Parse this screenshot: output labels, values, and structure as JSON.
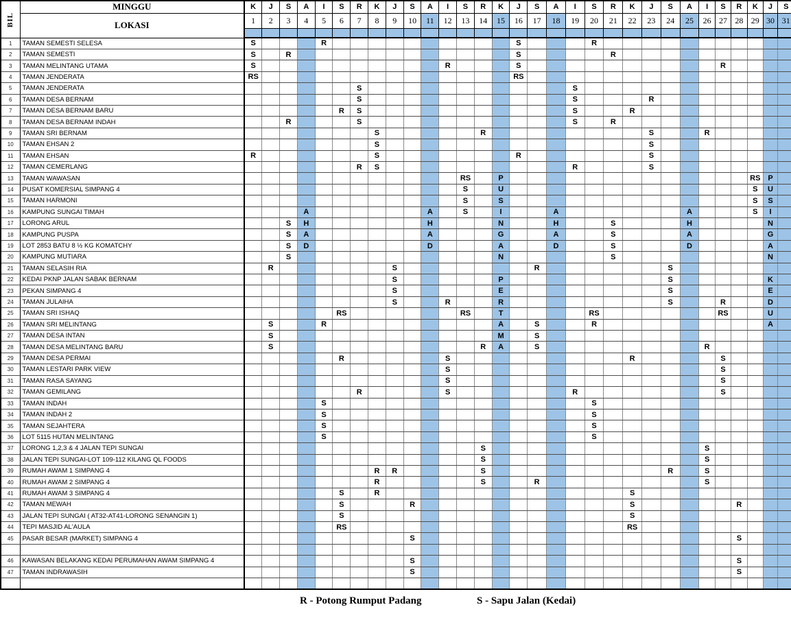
{
  "header": {
    "bil_label": "BIL",
    "minggu_label": "MINGGU",
    "lokasi_label": "LOKASI",
    "day_letters": [
      "K",
      "J",
      "S",
      "A",
      "I",
      "S",
      "R",
      "K",
      "J",
      "S",
      "A",
      "I",
      "S",
      "R",
      "K",
      "J",
      "S",
      "A",
      "I",
      "S",
      "R",
      "K",
      "J",
      "S",
      "A",
      "I",
      "S",
      "R",
      "K",
      "J",
      "S"
    ],
    "day_numbers": [
      "1",
      "2",
      "3",
      "4",
      "5",
      "6",
      "7",
      "8",
      "9",
      "10",
      "11",
      "12",
      "13",
      "14",
      "15",
      "16",
      "17",
      "18",
      "19",
      "20",
      "21",
      "22",
      "23",
      "24",
      "25",
      "26",
      "27",
      "28",
      "29",
      "30",
      "31"
    ],
    "highlighted_numbers": [
      11,
      15,
      18,
      25,
      30,
      31
    ]
  },
  "grid": {
    "blue_columns": [
      4,
      11,
      15,
      18,
      25,
      30,
      31
    ],
    "rows": [
      {
        "bil": "1",
        "name": "TAMAN SEMESTI SELESA",
        "cells": {
          "1": "S",
          "5": "R",
          "16": "S",
          "20": "R"
        }
      },
      {
        "bil": "2",
        "name": "TAMAN SEMESTI",
        "cells": {
          "1": "S",
          "3": "R",
          "16": "S",
          "21": "R"
        }
      },
      {
        "bil": "3",
        "name": "TAMAN MELINTANG UTAMA",
        "cells": {
          "1": "S",
          "12": "R",
          "16": "S",
          "27": "R"
        }
      },
      {
        "bil": "4",
        "name": "TAMAN JENDERATA",
        "cells": {
          "1": "RS",
          "16": "RS"
        }
      },
      {
        "bil": "5",
        "name": "TAMAN JENDERATA",
        "cells": {
          "7": "S",
          "19": "S"
        }
      },
      {
        "bil": "6",
        "name": "TAMAN DESA BERNAM",
        "cells": {
          "7": "S",
          "19": "S",
          "23": "R"
        }
      },
      {
        "bil": "7",
        "name": "TAMAN DESA BERNAM BARU",
        "cells": {
          "6": "R",
          "7": "S",
          "19": "S",
          "22": "R"
        }
      },
      {
        "bil": "8",
        "name": "TAMAN DESA BERNAM INDAH",
        "cells": {
          "3": "R",
          "7": "S",
          "19": "S",
          "21": "R"
        }
      },
      {
        "bil": "9",
        "name": "TAMAN SRI BERNAM",
        "cells": {
          "8": "S",
          "14": "R",
          "23": "S",
          "26": "R"
        }
      },
      {
        "bil": "10",
        "name": "TAMAN EHSAN 2",
        "cells": {
          "8": "S",
          "23": "S"
        }
      },
      {
        "bil": "11",
        "name": "TAMAN EHSAN",
        "cells": {
          "1": "R",
          "8": "S",
          "16": "R",
          "23": "S"
        }
      },
      {
        "bil": "12",
        "name": "TAMAN CEMERLANG",
        "cells": {
          "7": "R",
          "8": "S",
          "19": "R",
          "23": "S"
        }
      },
      {
        "bil": "13",
        "name": "TAMAN WAWASAN",
        "cells": {
          "13": "RS",
          "15": "P",
          "29": "RS",
          "30": "P"
        }
      },
      {
        "bil": "14",
        "name": "PUSAT KOMERSIAL SIMPANG 4",
        "cells": {
          "13": "S",
          "15": "U",
          "29": "S",
          "30": "U"
        }
      },
      {
        "bil": "15",
        "name": "TAMAN HARMONI",
        "cells": {
          "13": "S",
          "15": "S",
          "29": "S",
          "30": "S"
        }
      },
      {
        "bil": "16",
        "name": "KAMPUNG SUNGAI TIMAH",
        "cells": {
          "4": "A",
          "11": "A",
          "13": "S",
          "15": "I",
          "18": "A",
          "25": "A",
          "29": "S",
          "30": "I"
        }
      },
      {
        "bil": "17",
        "name": "LORONG ARUL",
        "cells": {
          "3": "S",
          "4": "H",
          "11": "H",
          "15": "N",
          "18": "H",
          "21": "S",
          "25": "H",
          "30": "N"
        }
      },
      {
        "bil": "18",
        "name": "KAMPUNG PUSPA",
        "cells": {
          "3": "S",
          "4": "A",
          "11": "A",
          "15": "G",
          "18": "A",
          "21": "S",
          "25": "A",
          "30": "G"
        }
      },
      {
        "bil": "19",
        "name": "LOT 2853 BATU 8 ½ KG KOMATCHY",
        "cells": {
          "3": "S",
          "4": "D",
          "11": "D",
          "15": "A",
          "18": "D",
          "21": "S",
          "25": "D",
          "30": "A"
        }
      },
      {
        "bil": "20",
        "name": "KAMPUNG MUTIARA",
        "cells": {
          "3": "S",
          "15": "N",
          "21": "S",
          "30": "N"
        }
      },
      {
        "bil": "21",
        "name": "TAMAN SELASIH RIA",
        "cells": {
          "2": "R",
          "9": "S",
          "17": "R",
          "24": "S"
        }
      },
      {
        "bil": "22",
        "name": "KEDAI PKNP JALAN SABAK BERNAM",
        "cells": {
          "9": "S",
          "15": "P",
          "24": "S",
          "30": "K"
        }
      },
      {
        "bil": "23",
        "name": "PEKAN SIMPANG 4",
        "cells": {
          "9": "S",
          "15": "E",
          "24": "S",
          "30": "E"
        }
      },
      {
        "bil": "24",
        "name": "TAMAN JULAIHA",
        "cells": {
          "9": "S",
          "12": "R",
          "15": "R",
          "24": "S",
          "27": "R",
          "30": "D"
        }
      },
      {
        "bil": "25",
        "name": "TAMAN SRI ISHAQ",
        "cells": {
          "6": "RS",
          "13": "RS",
          "15": "T",
          "20": "RS",
          "27": "RS",
          "30": "U"
        }
      },
      {
        "bil": "26",
        "name": "TAMAN SRI MELINTANG",
        "cells": {
          "2": "S",
          "5": "R",
          "15": "A",
          "17": "S",
          "20": "R",
          "30": "A"
        }
      },
      {
        "bil": "27",
        "name": "TAMAN DESA INTAN",
        "cells": {
          "2": "S",
          "15": "M",
          "17": "S"
        }
      },
      {
        "bil": "28",
        "name": "TAMAN DESA MELINTANG BARU",
        "cells": {
          "2": "S",
          "14": "R",
          "15": "A",
          "17": "S",
          "26": "R"
        }
      },
      {
        "bil": "29",
        "name": "TAMAN DESA PERMAI",
        "cells": {
          "6": "R",
          "12": "S",
          "22": "R",
          "27": "S"
        }
      },
      {
        "bil": "30",
        "name": "TAMAN LESTARI PARK VIEW",
        "cells": {
          "12": "S",
          "27": "S"
        }
      },
      {
        "bil": "31",
        "name": "TAMAN RASA SAYANG",
        "cells": {
          "12": "S",
          "27": "S"
        }
      },
      {
        "bil": "32",
        "name": "TAMAN GEMILANG",
        "cells": {
          "7": "R",
          "12": "S",
          "19": "R",
          "27": "S"
        }
      },
      {
        "bil": "33",
        "name": "TAMAN INDAH",
        "cells": {
          "5": "S",
          "20": "S"
        }
      },
      {
        "bil": "34",
        "name": "TAMAN INDAH 2",
        "cells": {
          "5": "S",
          "20": "S"
        }
      },
      {
        "bil": "35",
        "name": "TAMAN SEJAHTERA",
        "cells": {
          "5": "S",
          "20": "S"
        }
      },
      {
        "bil": "36",
        "name": "LOT 5115 HUTAN MELINTANG",
        "cells": {
          "5": "S",
          "20": "S"
        }
      },
      {
        "bil": "37",
        "name": "LORONG 1,2,3 & 4 JALAN TEPI SUNGAI",
        "cells": {
          "14": "S",
          "26": "S"
        }
      },
      {
        "bil": "38",
        "name": "JALAN TEPI SUNGAI-LOT 109-112 KILANG QL FOODS",
        "cells": {
          "14": "S",
          "26": "S"
        }
      },
      {
        "bil": "39",
        "name": "RUMAH AWAM 1 SIMPANG 4",
        "cells": {
          "8": "R",
          "9": "R",
          "14": "S",
          "24": "R",
          "26": "S"
        }
      },
      {
        "bil": "40",
        "name": "RUMAH AWAM 2 SIMPANG 4",
        "cells": {
          "8": "R",
          "14": "S",
          "17": "R",
          "26": "S"
        }
      },
      {
        "bil": "41",
        "name": "RUMAH AWAM 3 SIMPANG 4",
        "cells": {
          "6": "S",
          "8": "R",
          "22": "S"
        }
      },
      {
        "bil": "42",
        "name": "TAMAN MEWAH",
        "cells": {
          "6": "S",
          "10": "R",
          "22": "S",
          "28": "R"
        }
      },
      {
        "bil": "43",
        "name": "JALAN TEPI SUNGAI ( AT32-AT41-LORONG SENANGIN 1)",
        "cells": {
          "6": "S",
          "22": "S"
        }
      },
      {
        "bil": "44",
        "name": "TEPI MASJID AL'AULA",
        "cells": {
          "6": "RS",
          "22": "RS"
        }
      },
      {
        "bil": "45",
        "name": "PASAR BESAR (MARKET) SIMPANG 4",
        "cells": {
          "10": "S",
          "28": "S"
        }
      },
      {
        "bil": "",
        "name": "",
        "cells": {}
      },
      {
        "bil": "46",
        "name": "KAWASAN BELAKANG KEDAI PERUMAHAN AWAM SIMPANG 4",
        "cells": {
          "10": "S",
          "28": "S"
        }
      },
      {
        "bil": "47",
        "name": "TAMAN INDRAWASIH",
        "cells": {
          "10": "S",
          "28": "S"
        }
      },
      {
        "bil": "",
        "name": "",
        "cells": {}
      }
    ]
  },
  "legend": {
    "r_label": "R - Potong Rumput Padang",
    "s_label": "S - Sapu Jalan (Kedai)"
  },
  "colors": {
    "highlight": "#9DC3E6"
  }
}
